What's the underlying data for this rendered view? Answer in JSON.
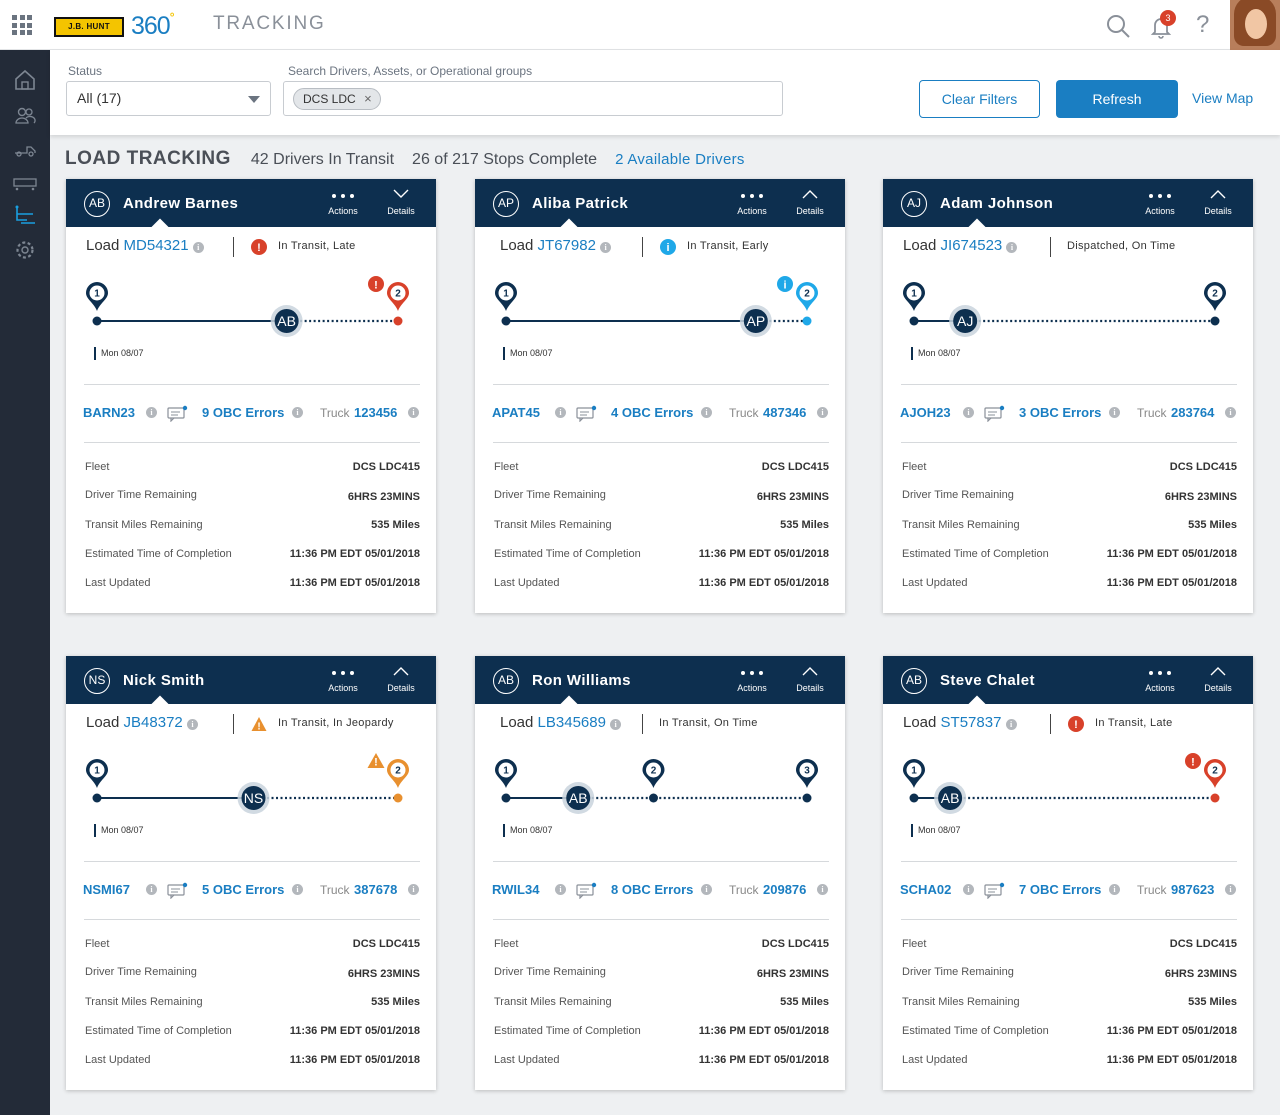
{
  "app": {
    "logo_text": "J.B. HUNT",
    "brand": "360",
    "brand_mark": "°",
    "section": "TRACKING",
    "notifications_count": "3",
    "help_glyph": "?"
  },
  "colors": {
    "navy": "#0d2f4f",
    "blue": "#1a7ec2",
    "red_late": "#d8412a",
    "orange_jeopardy": "#e8902f",
    "cyan_early": "#1fa8e8"
  },
  "sidebar": {
    "items": [
      "home-icon",
      "drivers-icon",
      "truck-icon",
      "trailer-icon",
      "tracking-icon",
      "settings-icon"
    ],
    "active": "tracking-icon"
  },
  "filters": {
    "status_label": "Status",
    "status_value": "All (17)",
    "search_label": "Search Drivers, Assets, or Operational groups",
    "chip": "DCS LDC",
    "chip_close": "×",
    "clear_button": "Clear Filters",
    "refresh_button": "Refresh",
    "view_map": "View Map"
  },
  "summary": {
    "title": "LOAD TRACKING",
    "in_transit": "42 Drivers In Transit",
    "stops": "26 of 217 Stops Complete",
    "available": "2 Available Drivers"
  },
  "card_labels": {
    "actions": "Actions",
    "details": "Details",
    "load": "Load",
    "truck": "Truck",
    "fleet": "Fleet",
    "driver_time": "Driver Time Remaining",
    "miles": "Transit Miles Remaining",
    "etc": "Estimated Time of Completion",
    "updated": "Last Updated"
  },
  "cards": [
    {
      "initials": "AB",
      "name": "Andrew Barnes",
      "load_id": "MD54321",
      "status": "In Transit, Late",
      "status_kind": "late",
      "date": "Mon 08/07",
      "stops": [
        "1",
        "2"
      ],
      "stop_positions": [
        0,
        1
      ],
      "driver_position": 0.63,
      "final_alert": "!",
      "driver_code": "BARN23",
      "obc": "9 OBC Errors",
      "truck": "123456",
      "fleet": "DCS LDC415",
      "driver_time": "6HRS 23MINS",
      "miles": "535 Miles",
      "etc": "11:36 PM EDT 05/01/2018",
      "updated": "11:36 PM EDT 05/01/2018"
    },
    {
      "initials": "AP",
      "name": "Aliba Patrick",
      "load_id": "JT67982",
      "status": "In Transit, Early",
      "status_kind": "early",
      "date": "Mon 08/07",
      "stops": [
        "1",
        "2"
      ],
      "stop_positions": [
        0,
        1
      ],
      "driver_position": 0.83,
      "final_alert": "i",
      "driver_code": "APAT45",
      "obc": "4 OBC Errors",
      "truck": "487346",
      "fleet": "DCS LDC415",
      "driver_time": "6HRS 23MINS",
      "miles": "535 Miles",
      "etc": "11:36 PM EDT 05/01/2018",
      "updated": "11:36 PM EDT 05/01/2018"
    },
    {
      "initials": "AJ",
      "name": "Adam Johnson",
      "load_id": "JI674523",
      "status": "Dispatched, On Time",
      "status_kind": "none",
      "date": "Mon 08/07",
      "stops": [
        "1",
        "2"
      ],
      "stop_positions": [
        0,
        1
      ],
      "driver_position": 0.17,
      "final_alert": "",
      "driver_code": "AJOH23",
      "obc": "3 OBC Errors",
      "truck": "283764",
      "fleet": "DCS LDC415",
      "driver_time": "6HRS 23MINS",
      "miles": "535 Miles",
      "etc": "11:36 PM EDT 05/01/2018",
      "updated": "11:36 PM EDT 05/01/2018"
    },
    {
      "initials": "NS",
      "name": "Nick Smith",
      "load_id": "JB48372",
      "status": "In Transit, In Jeopardy",
      "status_kind": "jeopardy",
      "date": "Mon 08/07",
      "stops": [
        "1",
        "2"
      ],
      "stop_positions": [
        0,
        1
      ],
      "driver_position": 0.52,
      "final_alert": "!",
      "driver_code": "NSMI67",
      "obc": "5 OBC Errors",
      "truck": "387678",
      "fleet": "DCS LDC415",
      "driver_time": "6HRS 23MINS",
      "miles": "535 Miles",
      "etc": "11:36 PM EDT 05/01/2018",
      "updated": "11:36 PM EDT 05/01/2018"
    },
    {
      "initials": "AB",
      "name": "Ron Williams",
      "load_id": "LB345689",
      "status": "In Transit, On Time",
      "status_kind": "none",
      "date": "Mon 08/07",
      "stops": [
        "1",
        "2",
        "3"
      ],
      "stop_positions": [
        0,
        0.49,
        1
      ],
      "driver_position": 0.24,
      "final_alert": "",
      "driver_code": "RWIL34",
      "obc": "8 OBC Errors",
      "truck": "209876",
      "fleet": "DCS LDC415",
      "driver_time": "6HRS 23MINS",
      "miles": "535 Miles",
      "etc": "11:36 PM EDT 05/01/2018",
      "updated": "11:36 PM EDT 05/01/2018"
    },
    {
      "initials": "AB",
      "name": "Steve Chalet",
      "load_id": "ST57837",
      "status": "In Transit, Late",
      "status_kind": "late",
      "date": "Mon 08/07",
      "stops": [
        "1",
        "2"
      ],
      "stop_positions": [
        0,
        1
      ],
      "driver_position": 0.12,
      "final_alert": "!",
      "driver_code": "SCHA02",
      "obc": "7 OBC Errors",
      "truck": "987623",
      "fleet": "DCS LDC415",
      "driver_time": "6HRS 23MINS",
      "miles": "535 Miles",
      "etc": "11:36 PM EDT 05/01/2018",
      "updated": "11:36 PM EDT 05/01/2018"
    }
  ]
}
